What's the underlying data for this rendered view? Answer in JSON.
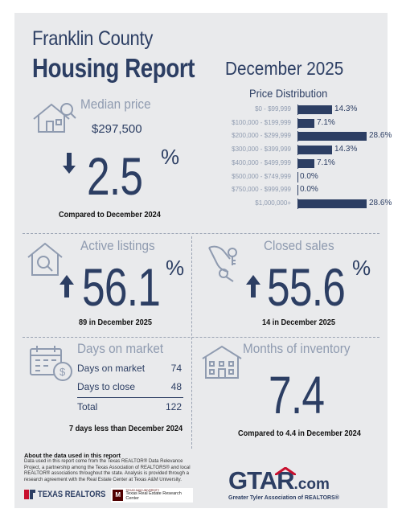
{
  "header": {
    "county": "Franklin County",
    "report_title": "Housing Report",
    "month": "December 2025"
  },
  "median_price": {
    "label": "Median price",
    "value": "$297,500",
    "change": "2.5",
    "change_unit": "%",
    "direction": "down",
    "note": "Compared to December 2024"
  },
  "price_distribution": {
    "title": "Price Distribution",
    "rows": [
      {
        "label": "$0 - $99,999",
        "value": "14.3%",
        "pct": 14.3
      },
      {
        "label": "$100,000 - $199,999",
        "value": "7.1%",
        "pct": 7.1
      },
      {
        "label": "$200,000 - $299,999",
        "value": "28.6%",
        "pct": 28.6
      },
      {
        "label": "$300,000 - $399,999",
        "value": "14.3%",
        "pct": 14.3
      },
      {
        "label": "$400,000 - $499,999",
        "value": "7.1%",
        "pct": 7.1
      },
      {
        "label": "$500,000 - $749,999",
        "value": "0.0%",
        "pct": 0.0
      },
      {
        "label": "$750,000 - $999,999",
        "value": "0.0%",
        "pct": 0.0
      },
      {
        "label": "$1,000,000+",
        "value": "28.6%",
        "pct": 28.6
      }
    ]
  },
  "active_listings": {
    "label": "Active listings",
    "change": "56.1",
    "change_unit": "%",
    "direction": "up",
    "note": "89 in December 2025"
  },
  "closed_sales": {
    "label": "Closed sales",
    "change": "55.6",
    "change_unit": "%",
    "direction": "up",
    "note": "14 in December 2025"
  },
  "days_on_market": {
    "label": "Days on market",
    "rows": [
      {
        "label": "Days on market",
        "value": "74"
      },
      {
        "label": "Days to close",
        "value": "48"
      }
    ],
    "total_label": "Total",
    "total_value": "122",
    "note": "7 days less than December 2024"
  },
  "months_inventory": {
    "label": "Months of inventory",
    "value": "7.4",
    "note": "Compared to 4.4 in December 2024"
  },
  "about": {
    "title": "About the data used in this report",
    "text": "Data used in this report come from the Texas REALTOR® Data Relevance Project, a partnership among the Texas Association of REALTORS® and local REALTOR® associations throughout the state. Analysis is provided through a research agreement with the Real Estate Center at Texas A&M University."
  },
  "logos": {
    "texas_realtors": "TEXAS REALTORS",
    "tamu_small": "TEXAS A&M UNIVERSITY",
    "tamu_center": "Texas Real Estate Research Center",
    "gtar_main": "GTAR",
    "gtar_suffix": ".com",
    "gtar_tagline": "Greater Tyler Association of REALTORS®"
  },
  "colors": {
    "navy": "#2c3e63",
    "muted": "#8f9bb0",
    "background": "#e9eaec",
    "gtar_red": "#c8102e"
  }
}
